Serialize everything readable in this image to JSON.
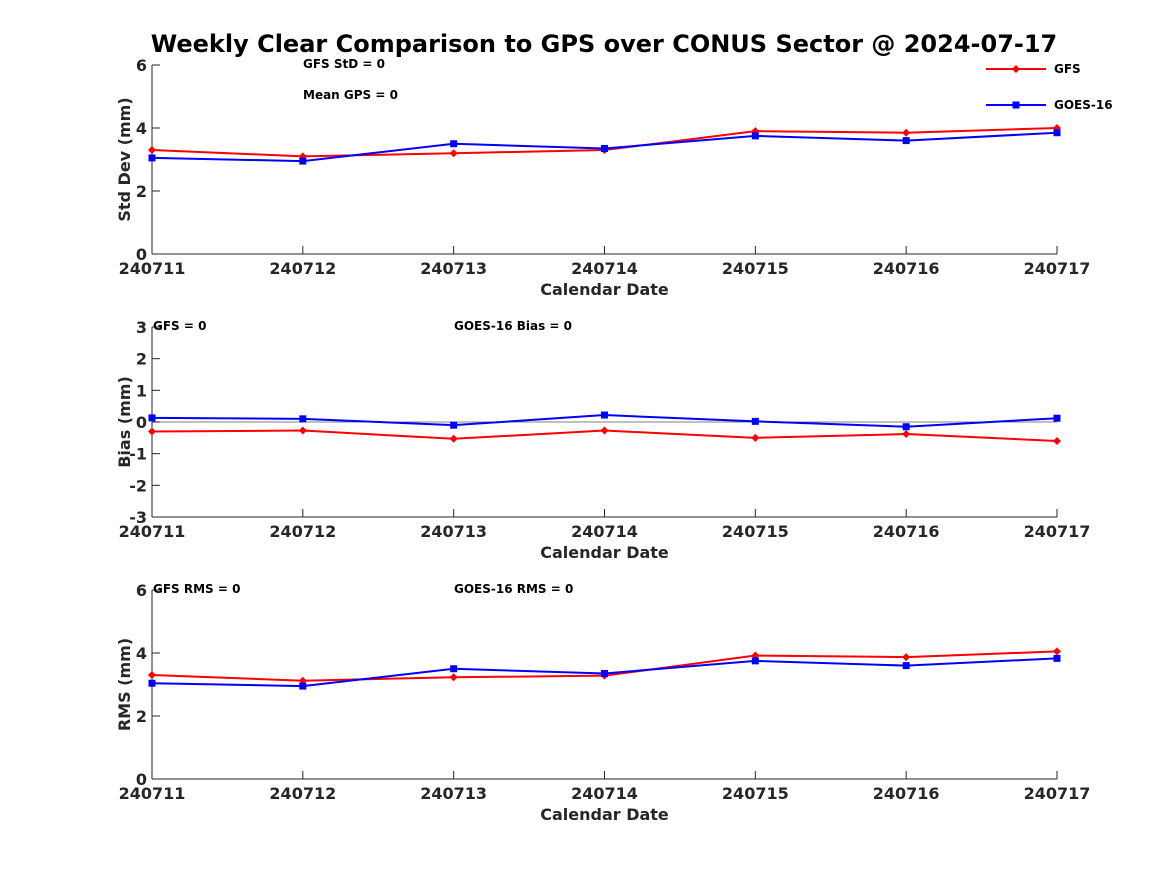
{
  "figure": {
    "title": "Weekly Clear Comparison to GPS over CONUS Sector @ 2024-07-17"
  },
  "colors": {
    "GFS": "#ff0000",
    "GOES-16": "#0000ff",
    "axis": "#262626",
    "zero_line": "#808080"
  },
  "chart_data": [
    {
      "type": "line",
      "id": "stddev",
      "xlabel": "Calendar Date",
      "ylabel": "Std Dev (mm)",
      "categories": [
        "240711",
        "240712",
        "240713",
        "240714",
        "240715",
        "240716",
        "240717"
      ],
      "ylim": [
        0,
        6
      ],
      "yticks": [
        0,
        2,
        4,
        6
      ],
      "zero_line": false,
      "series": [
        {
          "name": "GFS",
          "marker": "diamond",
          "values": [
            3.3,
            3.1,
            3.2,
            3.3,
            3.9,
            3.85,
            4.0
          ]
        },
        {
          "name": "GOES-16",
          "marker": "square",
          "values": [
            3.05,
            2.95,
            3.5,
            3.35,
            3.75,
            3.6,
            3.85
          ]
        }
      ],
      "legend": {
        "position": "top-right",
        "entries": [
          "GFS",
          "GOES-16"
        ]
      },
      "annotations": [
        {
          "text": "GFS StD = 0",
          "at": "upper-left-second"
        },
        {
          "text": "Mean GPS = 0",
          "at": "upper-left-second-below"
        }
      ]
    },
    {
      "type": "line",
      "id": "bias",
      "xlabel": "Calendar Date",
      "ylabel": "Bias (mm)",
      "categories": [
        "240711",
        "240712",
        "240713",
        "240714",
        "240715",
        "240716",
        "240717"
      ],
      "ylim": [
        -3,
        3
      ],
      "yticks": [
        -3,
        -2,
        -1,
        0,
        1,
        2,
        3
      ],
      "zero_line": true,
      "series": [
        {
          "name": "GFS",
          "marker": "diamond",
          "values": [
            -0.3,
            -0.27,
            -0.53,
            -0.27,
            -0.5,
            -0.38,
            -0.6
          ]
        },
        {
          "name": "GOES-16",
          "marker": "square",
          "values": [
            0.13,
            0.1,
            -0.1,
            0.22,
            0.02,
            -0.15,
            0.12
          ]
        }
      ],
      "annotations": [
        {
          "text": "GFS = 0",
          "at": "upper-left"
        },
        {
          "text": "GOES-16 Bias  = 0",
          "at": "upper-mid"
        }
      ]
    },
    {
      "type": "line",
      "id": "rms",
      "xlabel": "Calendar Date",
      "ylabel": "RMS (mm)",
      "categories": [
        "240711",
        "240712",
        "240713",
        "240714",
        "240715",
        "240716",
        "240717"
      ],
      "ylim": [
        0,
        6
      ],
      "yticks": [
        0,
        2,
        4,
        6
      ],
      "zero_line": false,
      "series": [
        {
          "name": "GFS",
          "marker": "diamond",
          "values": [
            3.3,
            3.12,
            3.23,
            3.28,
            3.92,
            3.87,
            4.05
          ]
        },
        {
          "name": "GOES-16",
          "marker": "square",
          "values": [
            3.04,
            2.95,
            3.5,
            3.35,
            3.75,
            3.6,
            3.83
          ]
        }
      ],
      "annotations": [
        {
          "text": "GFS RMS = 0",
          "at": "upper-left"
        },
        {
          "text": "GOES-16 RMS = 0",
          "at": "upper-mid"
        }
      ]
    }
  ]
}
